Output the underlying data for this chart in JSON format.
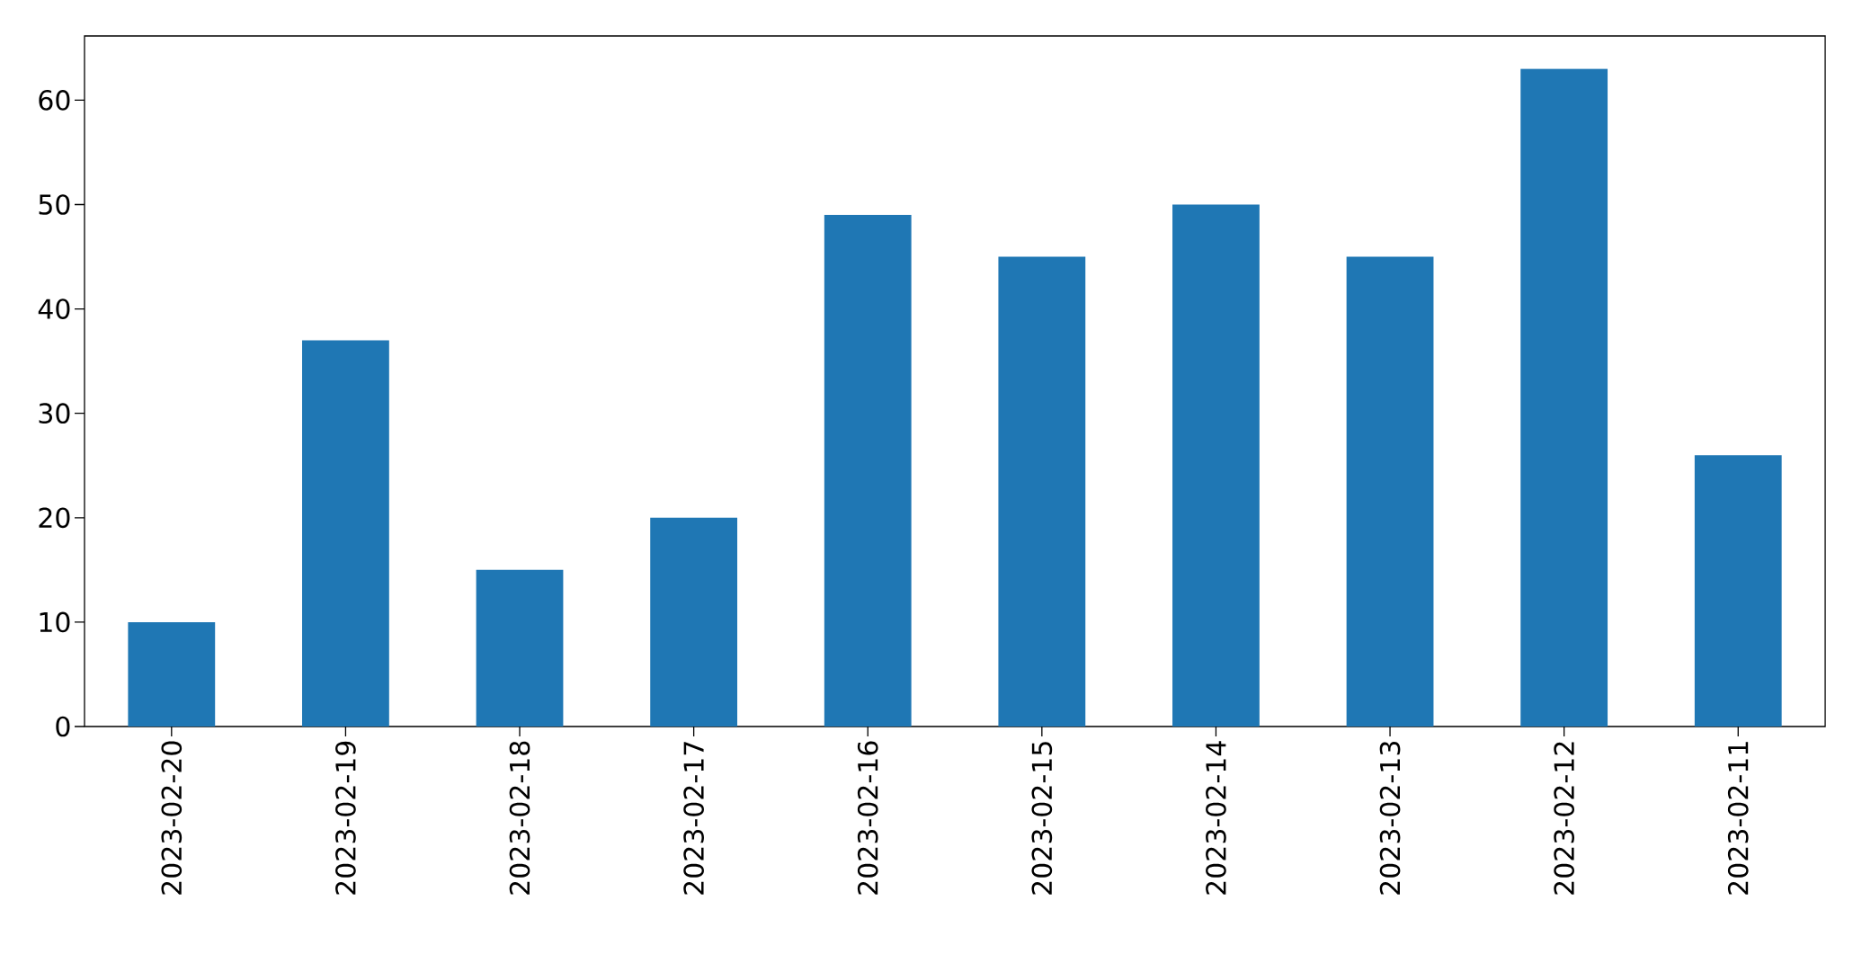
{
  "chart_data": {
    "type": "bar",
    "categories": [
      "2023-02-20",
      "2023-02-19",
      "2023-02-18",
      "2023-02-17",
      "2023-02-16",
      "2023-02-15",
      "2023-02-14",
      "2023-02-13",
      "2023-02-12",
      "2023-02-11"
    ],
    "values": [
      10,
      37,
      15,
      20,
      49,
      45,
      50,
      45,
      63,
      26
    ],
    "color": "#1f77b4",
    "ylim": [
      0,
      66.15
    ],
    "yticks": [
      0,
      10,
      20,
      30,
      40,
      50,
      60
    ]
  }
}
